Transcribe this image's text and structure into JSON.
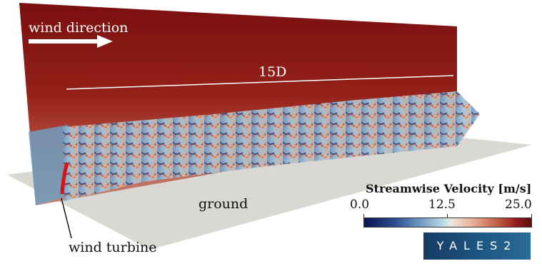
{
  "labels": {
    "wind_direction": "wind direction",
    "length": "15D",
    "ground": "ground",
    "wind_turbine": "wind turbine"
  },
  "colorbar": {
    "title": "Streamwise Velocity [m/s]",
    "ticks": [
      "0.0",
      "12.5",
      "25.0"
    ],
    "min": 0.0,
    "max": 25.0,
    "colors": {
      "low": "#0a1450",
      "mid": "#ede8df",
      "high": "#5c0b10"
    }
  },
  "logo": {
    "text": "YALES2"
  },
  "colors": {
    "background_plane": "#8f1c1a",
    "ground_plane": "#d9d8d3",
    "turbine": "#e01010",
    "arrow": "#ffffff"
  },
  "icons": {
    "wind_arrow": "right-arrow-icon"
  }
}
